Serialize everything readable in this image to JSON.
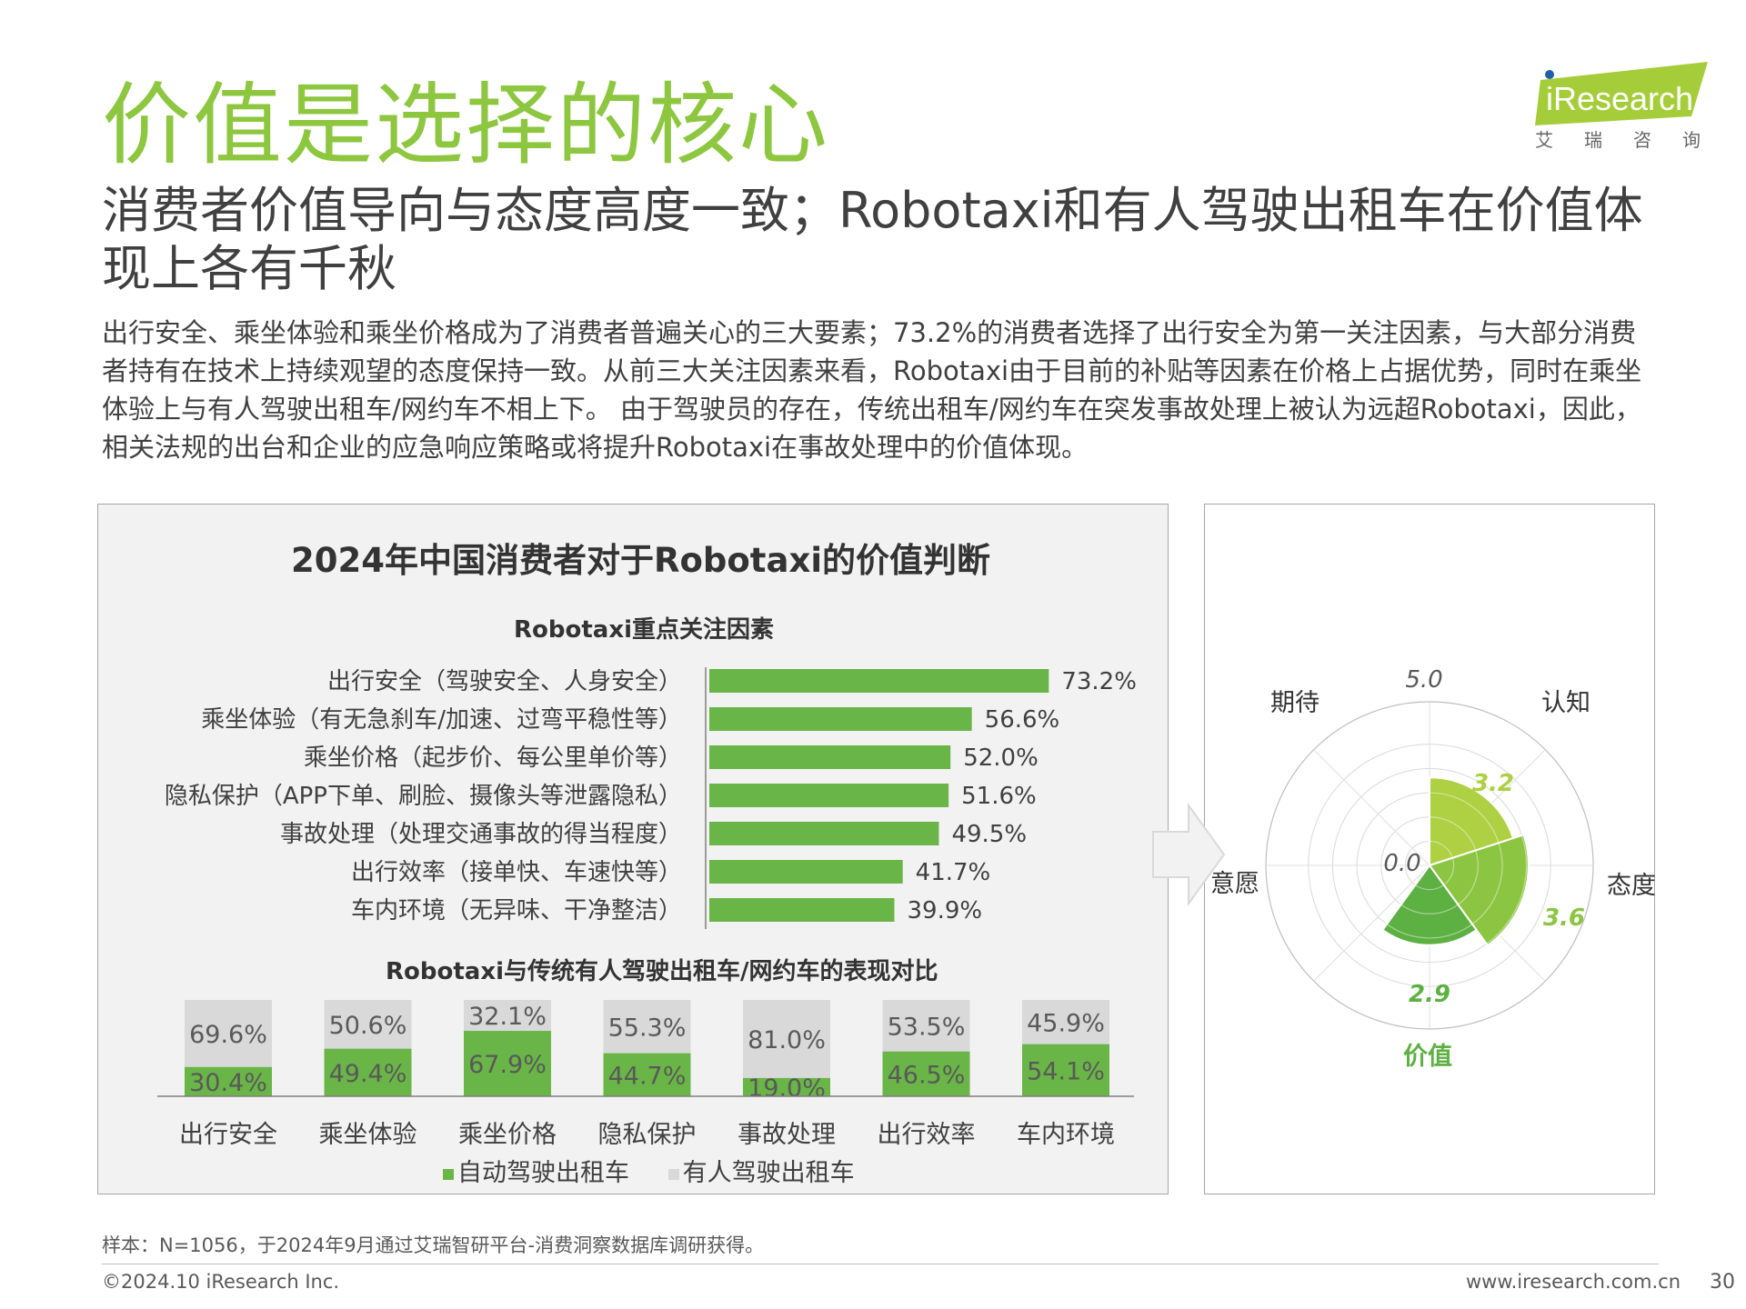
{
  "title": "价值是选择的核心",
  "subtitle": "消费者价值导向与态度高度一致；Robotaxi和有人驾驶出租车在价值体现上各有千秋",
  "description": "出行安全、乘坐体验和乘坐价格成为了消费者普遍关心的三大要素；73.2%的消费者选择了出行安全为第一关注因素，与大部分消费者持有在技术上持续观望的态度保持一致。从前三大关注因素来看，Robotaxi由于目前的补贴等因素在价格上占据优势，同时在乘坐体验上与有人驾驶出租车/网约车不相上下。 由于驾驶员的存在，传统出租车/网约车在突发事故处理上被认为远超Robotaxi，因此，相关法规的出台和企业的应急响应策略或将提升Robotaxi在事故处理中的价值体现。",
  "logo": {
    "brand": "iResearch",
    "subtitle": "艾瑞咨询"
  },
  "colors": {
    "green": "#6ab547",
    "gray": "#d9d9d9",
    "title_green": "#8dc63f"
  },
  "chart_data": [
    {
      "type": "bar",
      "orientation": "horizontal",
      "title": "2024年中国消费者对于Robotaxi的价值判断",
      "subtitle": "Robotaxi重点关注因素",
      "categories": [
        "出行安全（驾驶安全、人身安全）",
        "乘坐体验（有无急刹车/加速、过弯平稳性等）",
        "乘坐价格（起步价、每公里单价等）",
        "隐私保护（APP下单、刷脸、摄像头等泄露隐私）",
        "事故处理（处理交通事故的得当程度）",
        "出行效率（接单快、车速快等）",
        "车内环境（无异味、干净整洁）"
      ],
      "values": [
        73.2,
        56.6,
        52.0,
        51.6,
        49.5,
        41.7,
        39.9
      ],
      "labels": [
        "73.2%",
        "56.6%",
        "52.0%",
        "51.6%",
        "49.5%",
        "41.7%",
        "39.9%"
      ],
      "xlim": [
        0,
        100
      ]
    },
    {
      "type": "bar",
      "stacked": true,
      "percent": true,
      "title": "Robotaxi与传统有人驾驶出租车/网约车的表现对比",
      "categories": [
        "出行安全",
        "乘坐体验",
        "乘坐价格",
        "隐私保护",
        "事故处理",
        "出行效率",
        "车内环境"
      ],
      "series": [
        {
          "name": "自动驾驶出租车",
          "values": [
            30.4,
            49.4,
            67.9,
            44.7,
            19.0,
            46.5,
            54.1
          ],
          "labels": [
            "30.4%",
            "49.4%",
            "67.9%",
            "44.7%",
            "19.0%",
            "46.5%",
            "54.1%"
          ]
        },
        {
          "name": "有人驾驶出租车",
          "values": [
            69.6,
            50.6,
            32.1,
            55.3,
            81.0,
            53.5,
            45.9
          ],
          "labels": [
            "69.6%",
            "50.6%",
            "32.1%",
            "55.3%",
            "81.0%",
            "53.5%",
            "45.9%"
          ]
        }
      ],
      "legend": [
        "自动驾驶出租车",
        "有人驾驶出租车"
      ]
    },
    {
      "type": "radar",
      "axes": [
        "认知",
        "态度",
        "价值",
        "意愿",
        "期待"
      ],
      "values": [
        3.2,
        3.6,
        2.9
      ],
      "value_labels": [
        "3.2",
        "3.6",
        "2.9"
      ],
      "range": [
        0,
        5
      ],
      "range_labels": [
        "0.0",
        "5.0"
      ],
      "highlight": "价值"
    }
  ],
  "footnote": "样本：N=1056，于2024年9月通过艾瑞智研平台-消费洞察数据库调研获得。",
  "copyright": "©2024.10 iResearch Inc.",
  "website": "www.iresearch.com.cn",
  "page_number": "30"
}
